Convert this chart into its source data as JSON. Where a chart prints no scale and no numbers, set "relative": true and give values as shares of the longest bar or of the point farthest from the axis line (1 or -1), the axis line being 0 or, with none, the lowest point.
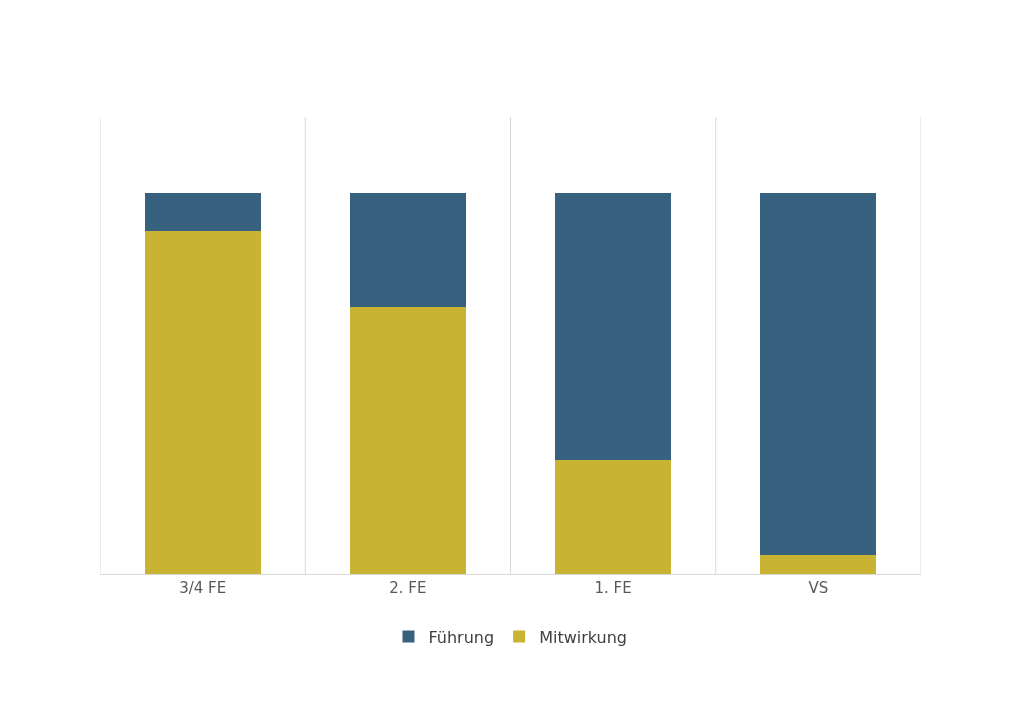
{
  "chart_data": {
    "type": "bar",
    "relative": true,
    "stacked": true,
    "grid": "x",
    "legend": "bottom",
    "categories": [
      "3/4 FE",
      "2. FE",
      "1. FE",
      "VS"
    ],
    "series": [
      {
        "name": "Mitwirkung",
        "color": "#c8b432",
        "values": [
          0.9,
          0.7,
          0.3,
          0.05
        ]
      },
      {
        "name": "Führung",
        "color": "#386180",
        "values": [
          0.1,
          0.3,
          0.7,
          0.95
        ]
      }
    ]
  }
}
